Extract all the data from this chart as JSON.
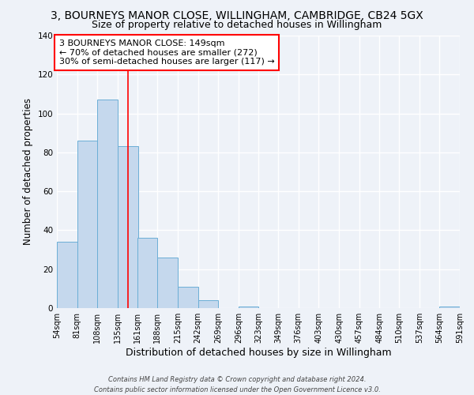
{
  "title": "3, BOURNEYS MANOR CLOSE, WILLINGHAM, CAMBRIDGE, CB24 5GX",
  "subtitle": "Size of property relative to detached houses in Willingham",
  "xlabel": "Distribution of detached houses by size in Willingham",
  "ylabel": "Number of detached properties",
  "bin_labels": [
    "54sqm",
    "81sqm",
    "108sqm",
    "135sqm",
    "161sqm",
    "188sqm",
    "215sqm",
    "242sqm",
    "269sqm",
    "296sqm",
    "323sqm",
    "349sqm",
    "376sqm",
    "403sqm",
    "430sqm",
    "457sqm",
    "484sqm",
    "510sqm",
    "537sqm",
    "564sqm",
    "591sqm"
  ],
  "bin_edges": [
    54,
    81,
    108,
    135,
    161,
    188,
    215,
    242,
    269,
    296,
    323,
    349,
    376,
    403,
    430,
    457,
    484,
    510,
    537,
    564,
    591
  ],
  "bar_heights": [
    34,
    86,
    107,
    83,
    36,
    26,
    11,
    4,
    0,
    1,
    0,
    0,
    0,
    0,
    0,
    0,
    0,
    0,
    0,
    1
  ],
  "bar_color": "#c5d8ed",
  "bar_edge_color": "#6baed6",
  "vline_x": 149,
  "vline_color": "red",
  "ylim": [
    0,
    140
  ],
  "yticks": [
    0,
    20,
    40,
    60,
    80,
    100,
    120,
    140
  ],
  "annotation_line1": "3 BOURNEYS MANOR CLOSE: 149sqm",
  "annotation_line2": "← 70% of detached houses are smaller (272)",
  "annotation_line3": "30% of semi-detached houses are larger (117) →",
  "annotation_box_color": "white",
  "annotation_box_edge": "red",
  "footer_line1": "Contains HM Land Registry data © Crown copyright and database right 2024.",
  "footer_line2": "Contains public sector information licensed under the Open Government Licence v3.0.",
  "background_color": "#eef2f8",
  "grid_color": "#ffffff",
  "title_fontsize": 10,
  "subtitle_fontsize": 9,
  "ylabel_fontsize": 8.5,
  "xlabel_fontsize": 9,
  "tick_fontsize": 7,
  "annotation_fontsize": 8,
  "footer_fontsize": 6
}
